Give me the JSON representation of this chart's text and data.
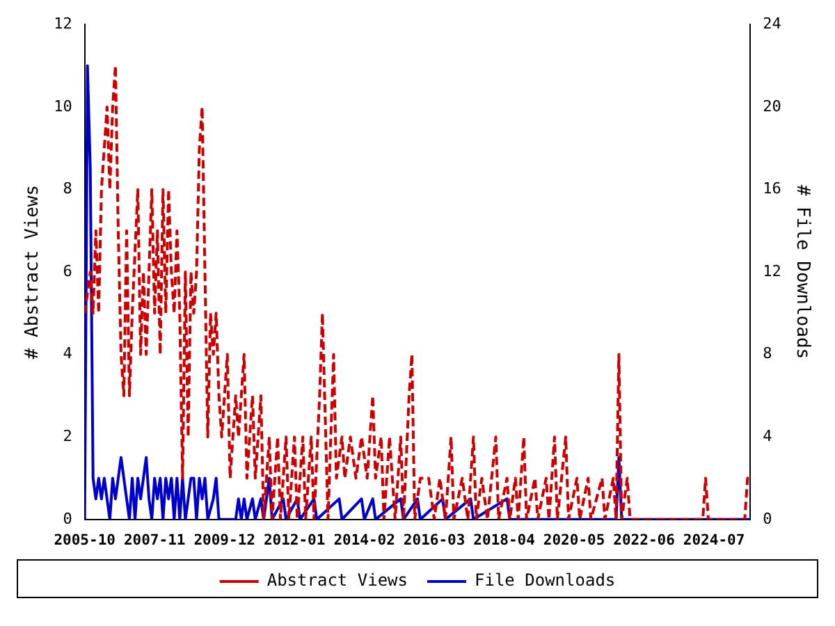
{
  "chart_data": {
    "type": "line",
    "ylabel": "# Abstract Views",
    "y2label": "# File Downloads",
    "xlim": [
      "2005-10",
      "2025-08"
    ],
    "xticks": [
      "2005-10",
      "2007-11",
      "2009-12",
      "2012-01",
      "2014-02",
      "2016-03",
      "2018-04",
      "2020-05",
      "2022-06",
      "2024-07"
    ],
    "ylim": [
      0,
      12
    ],
    "yticks": [
      0,
      2,
      4,
      6,
      8,
      10,
      12
    ],
    "y2lim": [
      0,
      24
    ],
    "y2ticks": [
      0,
      4,
      8,
      12,
      16,
      20,
      24
    ],
    "grid": false,
    "legend": "bottom",
    "marker": "none",
    "series": [
      {
        "name": "Abstract Views",
        "color": "#cc0000",
        "line_style": "dashed",
        "x": [
          "2005-10",
          "2005-12",
          "2006-01",
          "2006-02",
          "2006-03",
          "2006-04",
          "2006-05",
          "2006-06",
          "2006-07",
          "2006-08",
          "2006-09",
          "2006-10",
          "2006-11",
          "2006-12",
          "2007-01",
          "2007-02",
          "2007-03",
          "2007-05",
          "2007-06",
          "2007-07",
          "2007-08",
          "2007-09",
          "2007-10",
          "2007-11",
          "2007-12",
          "2008-01",
          "2008-02",
          "2008-03",
          "2008-04",
          "2008-05",
          "2008-06",
          "2008-07",
          "2008-08",
          "2008-09",
          "2008-10",
          "2008-11",
          "2008-12",
          "2009-01",
          "2009-02",
          "2009-03",
          "2009-04",
          "2009-05",
          "2009-06",
          "2009-07",
          "2009-08",
          "2009-09",
          "2009-10",
          "2009-11",
          "2010-01",
          "2010-02",
          "2010-04",
          "2010-05",
          "2010-07",
          "2010-08",
          "2010-10",
          "2010-11",
          "2011-01",
          "2011-02",
          "2011-04",
          "2011-05",
          "2011-07",
          "2011-08",
          "2011-10",
          "2011-11",
          "2012-01",
          "2012-02",
          "2012-04",
          "2012-05",
          "2012-07",
          "2012-08",
          "2012-10",
          "2012-11",
          "2013-01",
          "2013-03",
          "2013-04",
          "2013-06",
          "2013-07",
          "2013-09",
          "2013-11",
          "2014-01",
          "2014-03",
          "2014-05",
          "2014-06",
          "2014-08",
          "2014-09",
          "2014-11",
          "2015-01",
          "2015-03",
          "2015-04",
          "2015-06",
          "2015-07",
          "2015-08",
          "2015-10",
          "2016-01",
          "2016-03",
          "2016-05",
          "2016-07",
          "2016-09",
          "2016-10",
          "2017-01",
          "2017-03",
          "2017-05",
          "2017-06",
          "2017-08",
          "2017-10",
          "2018-01",
          "2018-02",
          "2018-05",
          "2018-06",
          "2018-08",
          "2018-09",
          "2018-11",
          "2018-12",
          "2019-03",
          "2019-04",
          "2019-07",
          "2019-08",
          "2019-10",
          "2019-11",
          "2020-02",
          "2020-03",
          "2020-06",
          "2020-07",
          "2020-10",
          "2020-11",
          "2021-03",
          "2021-04",
          "2021-07",
          "2021-08",
          "2021-09",
          "2021-10",
          "2021-12",
          "2022-01",
          "2024-03",
          "2024-04",
          "2024-05",
          "2025-06",
          "2025-07",
          "2025-08"
        ],
        "values": [
          5,
          6,
          5,
          7,
          5,
          8,
          9,
          10,
          8,
          10,
          11,
          7,
          4,
          3,
          7,
          3,
          5,
          8,
          4,
          6,
          4,
          6,
          8,
          5,
          7,
          4,
          8,
          5,
          8,
          6,
          5,
          7,
          5,
          1,
          6,
          2,
          6,
          5,
          6,
          9,
          10,
          6,
          2,
          5,
          4,
          5,
          3,
          2,
          4,
          1,
          3,
          2,
          4,
          1,
          3,
          1,
          3,
          0,
          2,
          0,
          2,
          0,
          2,
          0,
          2,
          0,
          2,
          0,
          2,
          0,
          3,
          5,
          0,
          4,
          1,
          2,
          1,
          2,
          1,
          2,
          1,
          3,
          1,
          2,
          0,
          2,
          0,
          2,
          0,
          3,
          4,
          0,
          1,
          1,
          0,
          1,
          0,
          2,
          0,
          1,
          0,
          2,
          0,
          1,
          0,
          2,
          0,
          1,
          0,
          1,
          0,
          2,
          0,
          1,
          0,
          1,
          0,
          2,
          0,
          2,
          0,
          1,
          0,
          1,
          0,
          1,
          0,
          1,
          0,
          4,
          0,
          1,
          0,
          0,
          1,
          0,
          0,
          1,
          1
        ]
      },
      {
        "name": "File Downloads",
        "color": "#0000cc",
        "line_style": "solid",
        "axis": "y2",
        "x": [
          "2005-10",
          "2005-11",
          "2005-12",
          "2006-01",
          "2006-02",
          "2006-03",
          "2006-04",
          "2006-05",
          "2006-06",
          "2006-07",
          "2006-08",
          "2006-09",
          "2006-10",
          "2006-11",
          "2006-12",
          "2007-01",
          "2007-02",
          "2007-03",
          "2007-04",
          "2007-05",
          "2007-06",
          "2007-07",
          "2007-08",
          "2007-09",
          "2007-10",
          "2007-11",
          "2007-12",
          "2008-01",
          "2008-02",
          "2008-03",
          "2008-04",
          "2008-05",
          "2008-06",
          "2008-07",
          "2008-08",
          "2008-09",
          "2008-10",
          "2008-11",
          "2008-12",
          "2009-01",
          "2009-02",
          "2009-03",
          "2009-04",
          "2009-05",
          "2009-06",
          "2009-08",
          "2009-09",
          "2009-10",
          "2010-04",
          "2010-05",
          "2010-06",
          "2010-07",
          "2010-08",
          "2010-10",
          "2010-11",
          "2011-01",
          "2011-02",
          "2011-04",
          "2011-05",
          "2011-09",
          "2011-10",
          "2012-02",
          "2012-03",
          "2012-08",
          "2012-09",
          "2013-05",
          "2013-06",
          "2014-01",
          "2014-02",
          "2014-05",
          "2014-06",
          "2015-03",
          "2015-04",
          "2015-09",
          "2015-10",
          "2016-06",
          "2016-07",
          "2017-04",
          "2017-05",
          "2018-05",
          "2018-06",
          "2021-08",
          "2021-09",
          "2021-10",
          "2025-08"
        ],
        "values": [
          0,
          22,
          17,
          2,
          1,
          2,
          1,
          2,
          1,
          0,
          2,
          1,
          2,
          3,
          2,
          1,
          0,
          2,
          0,
          2,
          1,
          2,
          3,
          1,
          0,
          2,
          1,
          2,
          0,
          2,
          1,
          2,
          0,
          2,
          0,
          2,
          0,
          1,
          2,
          2,
          0,
          2,
          1,
          2,
          0,
          1,
          2,
          0,
          0,
          1,
          0,
          1,
          0,
          1,
          0,
          1,
          0,
          2,
          0,
          1,
          0,
          1,
          0,
          1,
          0,
          1,
          0,
          1,
          0,
          1,
          0,
          1,
          0,
          1,
          0,
          1,
          0,
          1,
          0,
          1,
          0,
          0,
          3,
          0,
          0
        ]
      }
    ]
  }
}
